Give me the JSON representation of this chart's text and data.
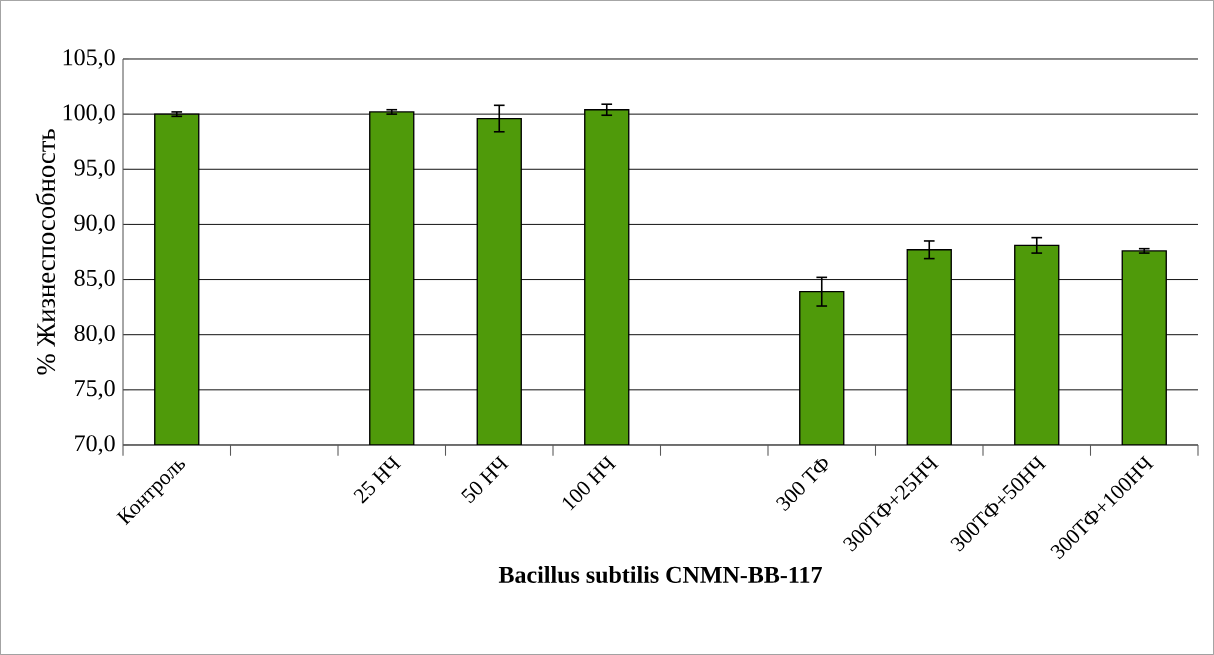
{
  "chart_data": {
    "type": "bar",
    "xlabel": "Bacillus subtilis CNMN-BB-117",
    "ylabel": "% Жизнеспособность",
    "categories": [
      "Контроль",
      null,
      "25 НЧ",
      "50 НЧ",
      "100 НЧ",
      null,
      "300 ТФ",
      "300ТФ+25НЧ",
      "300ТФ+50НЧ",
      "300ТФ+100НЧ"
    ],
    "values": [
      100.0,
      null,
      100.2,
      99.6,
      100.4,
      null,
      83.9,
      87.7,
      88.1,
      87.6
    ],
    "errors": [
      0.2,
      null,
      0.2,
      1.2,
      0.5,
      null,
      1.3,
      0.8,
      0.7,
      0.2
    ],
    "color": "#4f9a0a",
    "ylim": [
      70,
      105
    ],
    "yticks": [
      {
        "value": 70,
        "label": "70,0"
      },
      {
        "value": 75,
        "label": "75,0"
      },
      {
        "value": 80,
        "label": "80,0"
      },
      {
        "value": 85,
        "label": "85,0"
      },
      {
        "value": 90,
        "label": "90,0"
      },
      {
        "value": 95,
        "label": "95,0"
      },
      {
        "value": 100,
        "label": "100,0"
      },
      {
        "value": 105,
        "label": "105,0"
      }
    ],
    "grid": "y"
  }
}
